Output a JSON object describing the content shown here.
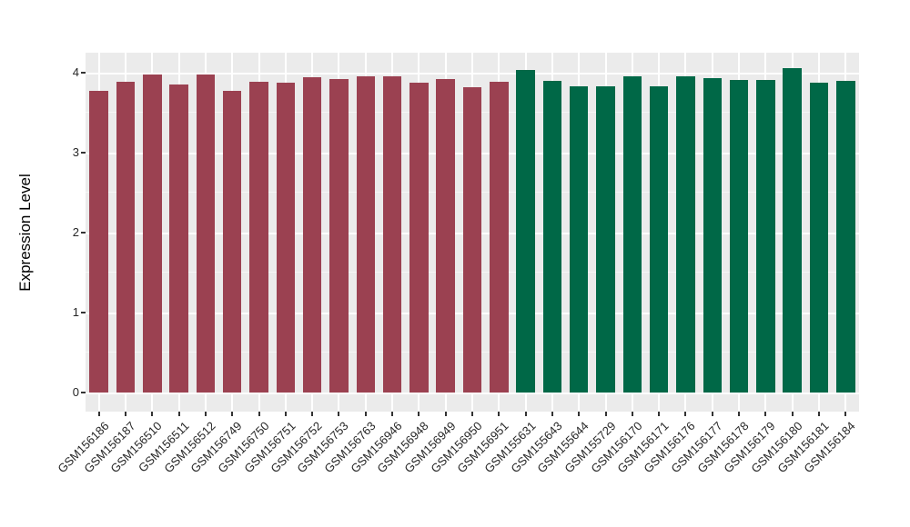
{
  "chart_data": {
    "type": "bar",
    "title": "",
    "xlabel": "",
    "ylabel": "Expression Level",
    "ylim": [
      -0.24,
      4.25
    ],
    "yticks": [
      0,
      1,
      2,
      3,
      4
    ],
    "ytick_labels": [
      "0",
      "1",
      "2",
      "3",
      "4"
    ],
    "yticks_minor": [
      0.5,
      1.5,
      2.5,
      3.5
    ],
    "grid": true,
    "legend_position": "none",
    "x_label_rotation_deg": 45,
    "categories": [
      "GSM156186",
      "GSM156187",
      "GSM156510",
      "GSM156511",
      "GSM156512",
      "GSM156749",
      "GSM156750",
      "GSM156751",
      "GSM156752",
      "GSM156753",
      "GSM156763",
      "GSM156946",
      "GSM156948",
      "GSM156949",
      "GSM156950",
      "GSM156951",
      "GSM155631",
      "GSM155643",
      "GSM155644",
      "GSM155729",
      "GSM156170",
      "GSM156171",
      "GSM156176",
      "GSM156177",
      "GSM156178",
      "GSM156179",
      "GSM156180",
      "GSM156181",
      "GSM156184"
    ],
    "values": [
      3.77,
      3.89,
      3.98,
      3.85,
      3.98,
      3.77,
      3.89,
      3.87,
      3.94,
      3.92,
      3.95,
      3.95,
      3.88,
      3.92,
      3.82,
      3.89,
      4.03,
      3.9,
      3.83,
      3.83,
      3.95,
      3.83,
      3.96,
      3.93,
      3.91,
      3.91,
      4.06,
      3.88,
      3.9
    ],
    "groups": [
      {
        "name": "group-1-red",
        "color": "#9B4151"
      },
      {
        "name": "group-2-green",
        "color": "#006847"
      }
    ],
    "bar_group_index": [
      0,
      0,
      0,
      0,
      0,
      0,
      0,
      0,
      0,
      0,
      0,
      0,
      0,
      0,
      0,
      0,
      1,
      1,
      1,
      1,
      1,
      1,
      1,
      1,
      1,
      1,
      1,
      1,
      1
    ]
  },
  "colors": {
    "figure_background": "#FFFFFF",
    "panel_background": "#EBEBEB",
    "gridline": "#FFFFFF",
    "axis_text": "#262626",
    "axis_title": "#000000",
    "tick_mark": "#333333"
  }
}
